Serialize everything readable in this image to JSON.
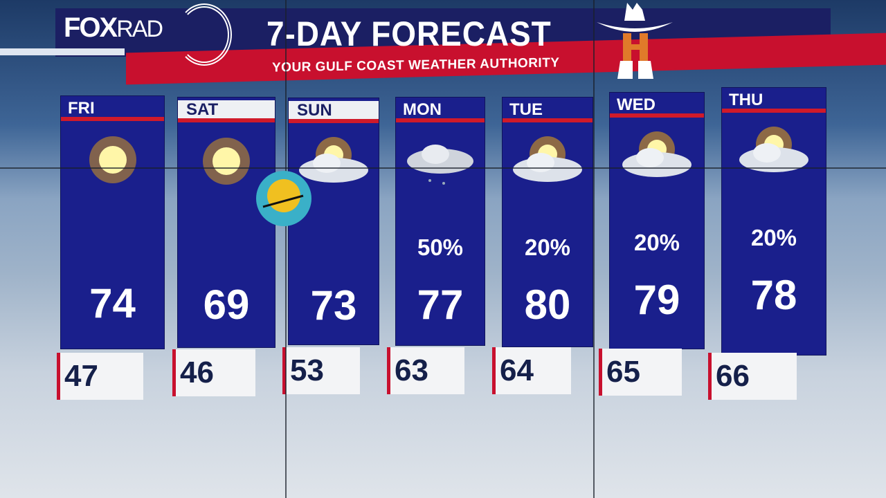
{
  "header": {
    "logo": "FOX RAD",
    "title": "7-DAY FORECAST",
    "subtitle": "YOUR GULF COAST WEATHER AUTHORITY"
  },
  "colors": {
    "panel": "#1a1f8c",
    "accent_red": "#c8102e",
    "header_navy": "#1b1f63"
  },
  "days": [
    {
      "day": "FRI",
      "icon": "sunny-icon",
      "pop": "",
      "high": "74",
      "low": "47"
    },
    {
      "day": "SAT",
      "icon": "sunny-icon",
      "pop": "",
      "high": "69",
      "low": "46"
    },
    {
      "day": "SUN",
      "icon": "partly-cloudy-icon",
      "pop": "",
      "high": "73",
      "low": "53"
    },
    {
      "day": "MON",
      "icon": "showers-icon",
      "pop": "50%",
      "high": "77",
      "low": "63"
    },
    {
      "day": "TUE",
      "icon": "partly-cloudy-icon",
      "pop": "20%",
      "high": "80",
      "low": "64"
    },
    {
      "day": "WED",
      "icon": "partly-cloudy-icon",
      "pop": "20%",
      "high": "79",
      "low": "65"
    },
    {
      "day": "THU",
      "icon": "partly-cloudy-icon",
      "pop": "20%",
      "high": "78",
      "low": "66"
    }
  ]
}
